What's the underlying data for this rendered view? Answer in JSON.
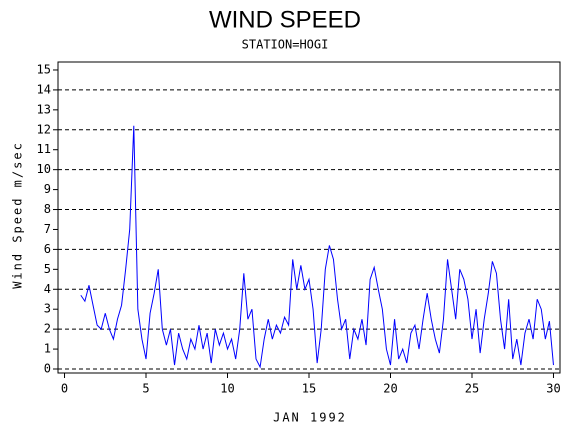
{
  "chart_data": {
    "type": "line",
    "title": "WIND SPEED",
    "subtitle": "STATION=HOGI",
    "y_label": "Wind Speed m/sec",
    "x_label": "JAN 1992",
    "xlim": [
      -0.4,
      30.4
    ],
    "xticks": [
      0,
      5,
      10,
      15,
      20,
      25,
      30
    ],
    "ylim": [
      -0.2,
      15.4
    ],
    "yticks": [
      0,
      1,
      2,
      3,
      4,
      5,
      6,
      7,
      8,
      9,
      10,
      11,
      12,
      13,
      14,
      15
    ],
    "ygrid": [
      0,
      2,
      4,
      6,
      8,
      10,
      12,
      14
    ],
    "x": [
      1.0,
      1.25,
      1.5,
      1.75,
      2.0,
      2.25,
      2.5,
      2.75,
      3.0,
      3.25,
      3.5,
      3.75,
      4.0,
      4.25,
      4.5,
      4.75,
      5.0,
      5.25,
      5.5,
      5.75,
      6.0,
      6.25,
      6.5,
      6.75,
      7.0,
      7.25,
      7.5,
      7.75,
      8.0,
      8.25,
      8.5,
      8.75,
      9.0,
      9.25,
      9.5,
      9.75,
      10.0,
      10.25,
      10.5,
      10.75,
      11.0,
      11.25,
      11.5,
      11.75,
      12.0,
      12.25,
      12.5,
      12.75,
      13.0,
      13.25,
      13.5,
      13.75,
      14.0,
      14.25,
      14.5,
      14.75,
      15.0,
      15.25,
      15.5,
      15.75,
      16.0,
      16.25,
      16.5,
      16.75,
      17.0,
      17.25,
      17.5,
      17.75,
      18.0,
      18.25,
      18.5,
      18.75,
      19.0,
      19.25,
      19.5,
      19.75,
      20.0,
      20.25,
      20.5,
      20.75,
      21.0,
      21.25,
      21.5,
      21.75,
      22.0,
      22.25,
      22.5,
      22.75,
      23.0,
      23.25,
      23.5,
      23.75,
      24.0,
      24.25,
      24.5,
      24.75,
      25.0,
      25.25,
      25.5,
      25.75,
      26.0,
      26.25,
      26.5,
      26.75,
      27.0,
      27.25,
      27.5,
      27.75,
      28.0,
      28.25,
      28.5,
      28.75,
      29.0,
      29.25,
      29.5,
      29.75,
      30.0
    ],
    "series": [
      {
        "color": "#0000ff",
        "values": [
          3.7,
          3.4,
          4.2,
          3.2,
          2.2,
          2.0,
          2.8,
          2.0,
          1.5,
          2.5,
          3.2,
          5.0,
          7.0,
          12.2,
          3.0,
          1.5,
          0.5,
          2.8,
          3.8,
          5.0,
          2.0,
          1.2,
          2.0,
          0.2,
          1.8,
          1.0,
          0.5,
          1.5,
          1.0,
          2.2,
          1.0,
          1.8,
          0.3,
          2.0,
          1.2,
          1.8,
          1.0,
          1.5,
          0.5,
          2.0,
          4.8,
          2.5,
          3.0,
          0.5,
          0.1,
          1.5,
          2.5,
          1.5,
          2.2,
          1.8,
          2.6,
          2.2,
          5.5,
          4.0,
          5.2,
          4.0,
          4.5,
          3.0,
          0.3,
          2.0,
          5.0,
          6.2,
          5.5,
          3.5,
          2.0,
          2.5,
          0.5,
          2.0,
          1.5,
          2.5,
          1.2,
          4.5,
          5.1,
          4.0,
          3.0,
          1.0,
          0.2,
          2.5,
          0.5,
          1.0,
          0.3,
          1.8,
          2.2,
          1.0,
          2.5,
          3.8,
          2.5,
          1.5,
          0.8,
          2.5,
          5.5,
          4.0,
          2.5,
          5.0,
          4.5,
          3.5,
          1.5,
          3.0,
          0.8,
          2.5,
          3.8,
          5.4,
          4.8,
          2.5,
          1.0,
          3.5,
          0.5,
          1.5,
          0.2,
          1.8,
          2.5,
          1.5,
          3.5,
          3.0,
          1.5,
          2.4,
          0.2
        ]
      }
    ]
  }
}
